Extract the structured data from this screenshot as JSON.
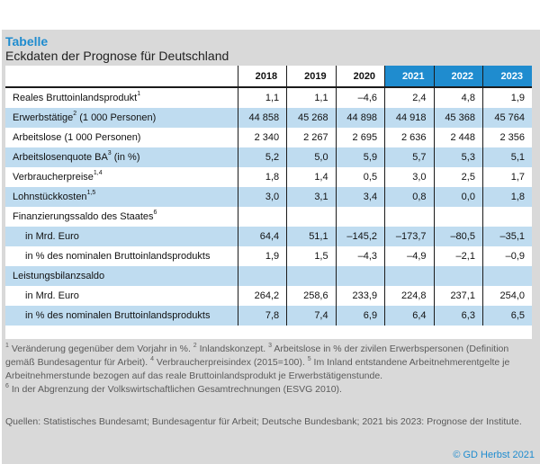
{
  "caption": {
    "kicker": "Tabelle",
    "title": "Eckdaten der Prognose für Deutschland"
  },
  "table": {
    "years": [
      "2018",
      "2019",
      "2020",
      "2021",
      "2022",
      "2023"
    ],
    "forecast_years": [
      "2021",
      "2022",
      "2023"
    ],
    "rows": [
      {
        "label": "Reales Bruttoinlandsprodukt",
        "sup": "1",
        "values": [
          "1,1",
          "1,1",
          "–4,6",
          "2,4",
          "4,8",
          "1,9"
        ],
        "shaded": false,
        "indent": false
      },
      {
        "label": "Erwerbstätige",
        "sup": "2",
        "suffix": " (1 000 Personen)",
        "values": [
          "44 858",
          "45 268",
          "44 898",
          "44 918",
          "45 368",
          "45 764"
        ],
        "shaded": true,
        "indent": false
      },
      {
        "label": "Arbeitslose (1 000 Personen)",
        "sup": "",
        "values": [
          "2 340",
          "2 267",
          "2 695",
          "2 636",
          "2 448",
          "2 356"
        ],
        "shaded": false,
        "indent": false
      },
      {
        "label": "Arbeitslosenquote BA",
        "sup": "3",
        "suffix": " (in %)",
        "values": [
          "5,2",
          "5,0",
          "5,9",
          "5,7",
          "5,3",
          "5,1"
        ],
        "shaded": true,
        "indent": false
      },
      {
        "label": "Verbraucherpreise",
        "sup": "1,4",
        "values": [
          "1,8",
          "1,4",
          "0,5",
          "3,0",
          "2,5",
          "1,7"
        ],
        "shaded": false,
        "indent": false
      },
      {
        "label": "Lohnstückkosten",
        "sup": "1,5",
        "values": [
          "3,0",
          "3,1",
          "3,4",
          "0,8",
          "0,0",
          "1,8"
        ],
        "shaded": true,
        "indent": false
      },
      {
        "label": "Finanzierungssaldo des Staates",
        "sup": "6",
        "values": [
          "",
          "",
          "",
          "",
          "",
          ""
        ],
        "shaded": false,
        "indent": false
      },
      {
        "label": "in Mrd. Euro",
        "sup": "",
        "values": [
          "64,4",
          "51,1",
          "–145,2",
          "–173,7",
          "–80,5",
          "–35,1"
        ],
        "shaded": true,
        "indent": true
      },
      {
        "label": "in % des nominalen Bruttoinlandsprodukts",
        "sup": "",
        "values": [
          "1,9",
          "1,5",
          "–4,3",
          "–4,9",
          "–2,1",
          "–0,9"
        ],
        "shaded": false,
        "indent": true
      },
      {
        "label": "Leistungsbilanzsaldo",
        "sup": "",
        "values": [
          "",
          "",
          "",
          "",
          "",
          ""
        ],
        "shaded": true,
        "indent": false
      },
      {
        "label": "in Mrd. Euro",
        "sup": "",
        "values": [
          "264,2",
          "258,6",
          "233,9",
          "224,8",
          "237,1",
          "254,0"
        ],
        "shaded": false,
        "indent": true
      },
      {
        "label": "in % des nominalen Bruttoinlandsprodukts",
        "sup": "",
        "values": [
          "7,8",
          "7,4",
          "6,9",
          "6,4",
          "6,3",
          "6,5"
        ],
        "shaded": true,
        "indent": true
      }
    ]
  },
  "footnotes": [
    {
      "sup": "1",
      "text": " Veränderung gegenüber dem Vorjahr in %. "
    },
    {
      "sup": "2",
      "text": " Inlandskonzept. "
    },
    {
      "sup": "3",
      "text": " Arbeitslose in % der zivilen Erwerbspersonen (Definition gemäß Bundesagentur für Arbeit). "
    },
    {
      "sup": "4",
      "text": " Verbraucherpreisindex (2015=100). "
    },
    {
      "sup": "5",
      "text": " Im Inland entstandene Arbeitnehmerentgelte je Arbeitnehmerstunde bezogen auf das reale Bruttoinlandsprodukt je Erwerbstätigenstunde."
    },
    {
      "sup": "6",
      "text": " In der Abgrenzung der Volkswirtschaftlichen Gesamtrechnungen (ESVG 2010)."
    }
  ],
  "source": "Quellen: Statistisches Bundesamt; Bundesagentur für Arbeit; Deutsche Bundesbank; 2021 bis 2023: Prognose der Institute.",
  "copyright": "© GD Herbst 2021",
  "colors": {
    "accent": "#1f8ccf",
    "row_shade": "#bfdcf0",
    "frame_gray": "#d9d9d9"
  }
}
